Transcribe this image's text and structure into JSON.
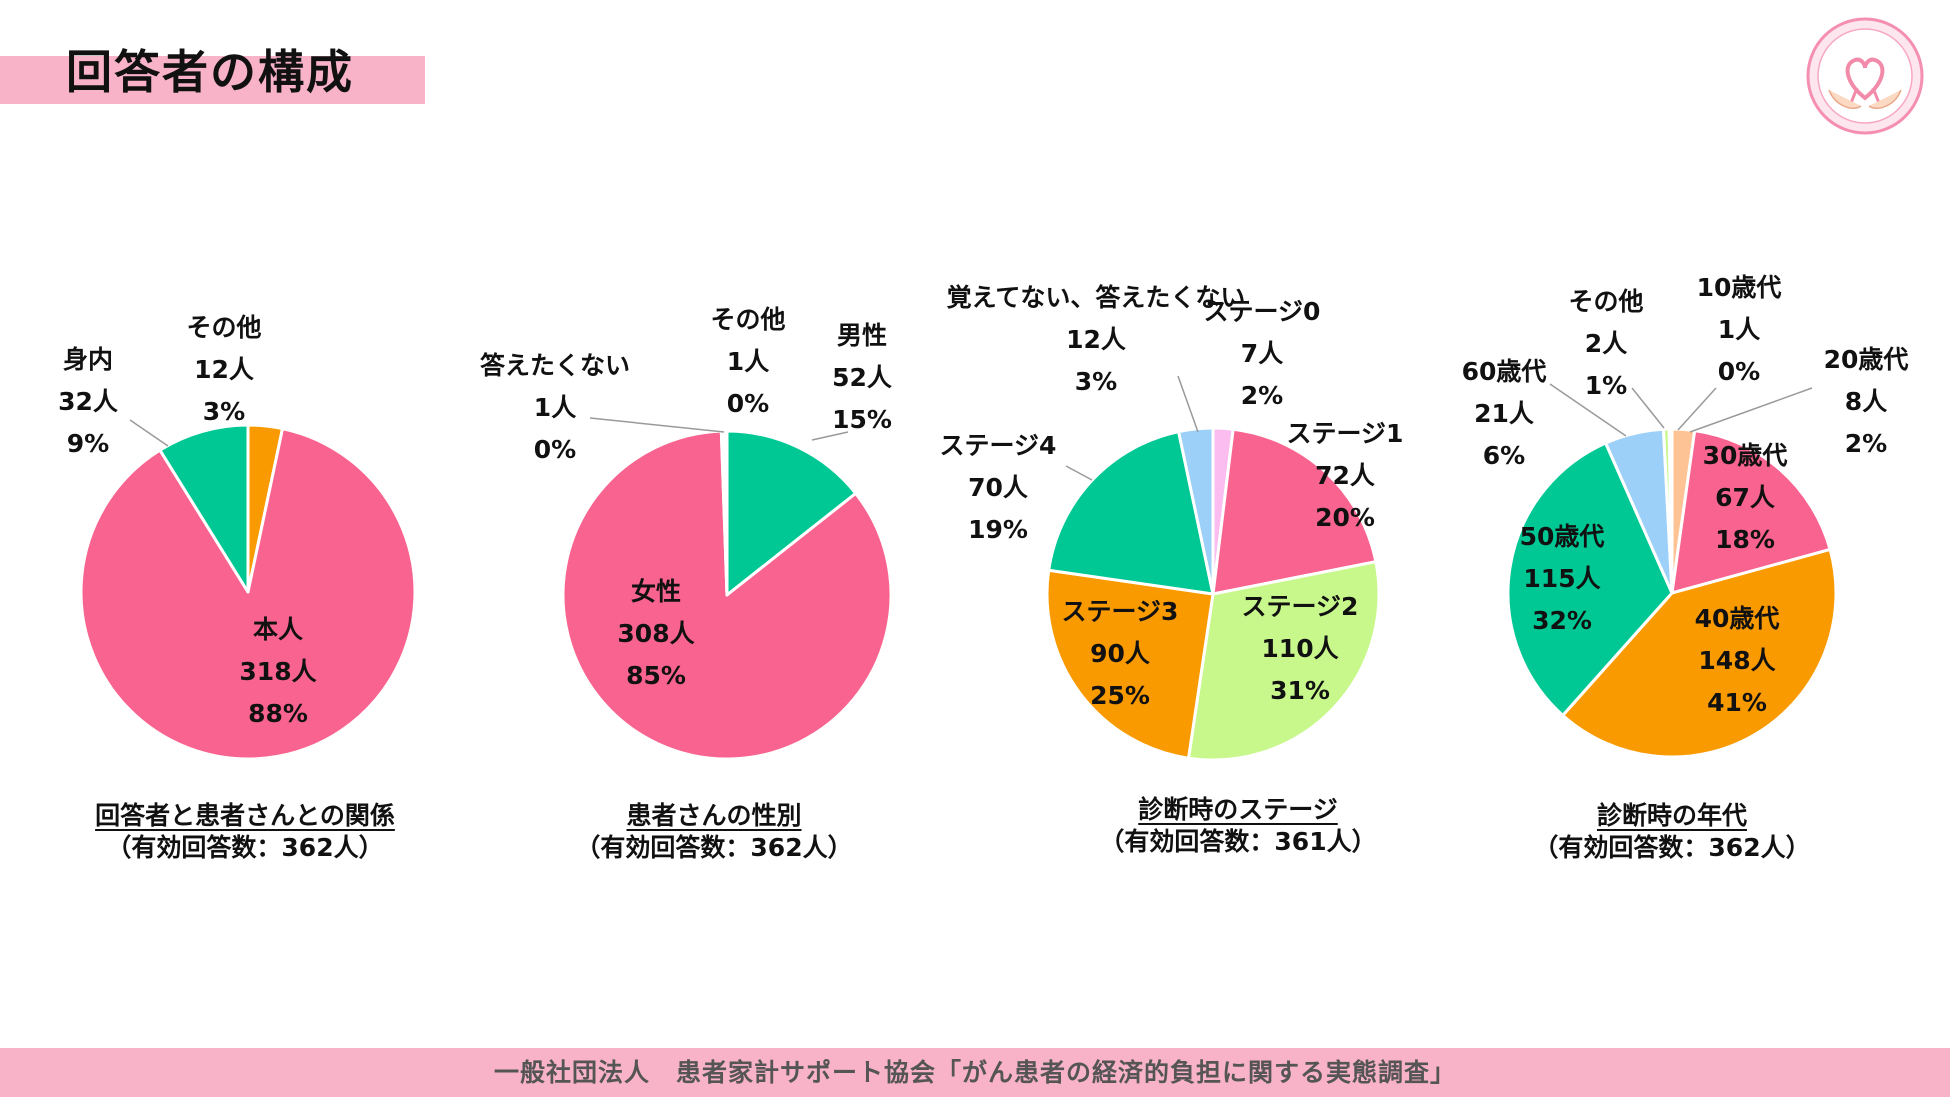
{
  "page_title": "回答者の構成",
  "logo_text": "患者家計サポート協会",
  "footer": "一般社団法人　患者家計サポート協会「がん患者の経済的負担に関する実態調査」",
  "colors": {
    "pink": "#f8638f",
    "teal": "#00c895",
    "orange": "#f99a00",
    "light_green": "#c8f88c",
    "light_blue": "#9dd0f8",
    "light_pink": "#fbbcef",
    "peach": "#fdc394",
    "header_band": "#f9b3c9"
  },
  "chart_data": [
    {
      "type": "pie",
      "title": "回答者と患者さんとの関係",
      "subtitle": "（有効回答数：362人）",
      "slices": [
        {
          "label": "その他",
          "count": "12人",
          "percent": "3%",
          "value": 12,
          "color": "#f99a00"
        },
        {
          "label": "本人",
          "count": "318人",
          "percent": "88%",
          "value": 318,
          "color": "#f8638f"
        },
        {
          "label": "身内",
          "count": "32人",
          "percent": "9%",
          "value": 32,
          "color": "#00c895"
        }
      ]
    },
    {
      "type": "pie",
      "title": "患者さんの性別",
      "subtitle": "（有効回答数：362人）",
      "slices": [
        {
          "label": "男性",
          "count": "52人",
          "percent": "15%",
          "value": 52,
          "color": "#00c895"
        },
        {
          "label": "女性",
          "count": "308人",
          "percent": "85%",
          "value": 308,
          "color": "#f8638f"
        },
        {
          "label": "答えたくない",
          "count": "1人",
          "percent": "0%",
          "value": 1,
          "color": "#ffffff"
        },
        {
          "label": "その他",
          "count": "1人",
          "percent": "0%",
          "value": 1,
          "color": "#ffffff"
        }
      ]
    },
    {
      "type": "pie",
      "title": "診断時のステージ",
      "subtitle": "（有効回答数：361人）",
      "slices": [
        {
          "label": "ステージ0",
          "count": "7人",
          "percent": "2%",
          "value": 7,
          "color": "#fbbcef"
        },
        {
          "label": "ステージ1",
          "count": "72人",
          "percent": "20%",
          "value": 72,
          "color": "#f8638f"
        },
        {
          "label": "ステージ2",
          "count": "110人",
          "percent": "31%",
          "value": 110,
          "color": "#c8f88c"
        },
        {
          "label": "ステージ3",
          "count": "90人",
          "percent": "25%",
          "value": 90,
          "color": "#f99a00"
        },
        {
          "label": "ステージ4",
          "count": "70人",
          "percent": "19%",
          "value": 70,
          "color": "#00c895"
        },
        {
          "label": "覚えてない、答えたくない",
          "count": "12人",
          "percent": "3%",
          "value": 12,
          "color": "#9dd0f8"
        }
      ]
    },
    {
      "type": "pie",
      "title": "診断時の年代",
      "subtitle": "（有効回答数：362人）",
      "slices": [
        {
          "label": "20歳代",
          "count": "8人",
          "percent": "2%",
          "value": 8,
          "color": "#fdc394"
        },
        {
          "label": "30歳代",
          "count": "67人",
          "percent": "18%",
          "value": 67,
          "color": "#f8638f"
        },
        {
          "label": "40歳代",
          "count": "148人",
          "percent": "41%",
          "value": 148,
          "color": "#f99a00"
        },
        {
          "label": "50歳代",
          "count": "115人",
          "percent": "32%",
          "value": 115,
          "color": "#00c895"
        },
        {
          "label": "60歳代",
          "count": "21人",
          "percent": "6%",
          "value": 21,
          "color": "#9dd0f8"
        },
        {
          "label": "その他",
          "count": "2人",
          "percent": "1%",
          "value": 2,
          "color": "#c8f88c"
        },
        {
          "label": "10歳代",
          "count": "1人",
          "percent": "0%",
          "value": 1,
          "color": "#9dd0f8"
        }
      ]
    }
  ]
}
